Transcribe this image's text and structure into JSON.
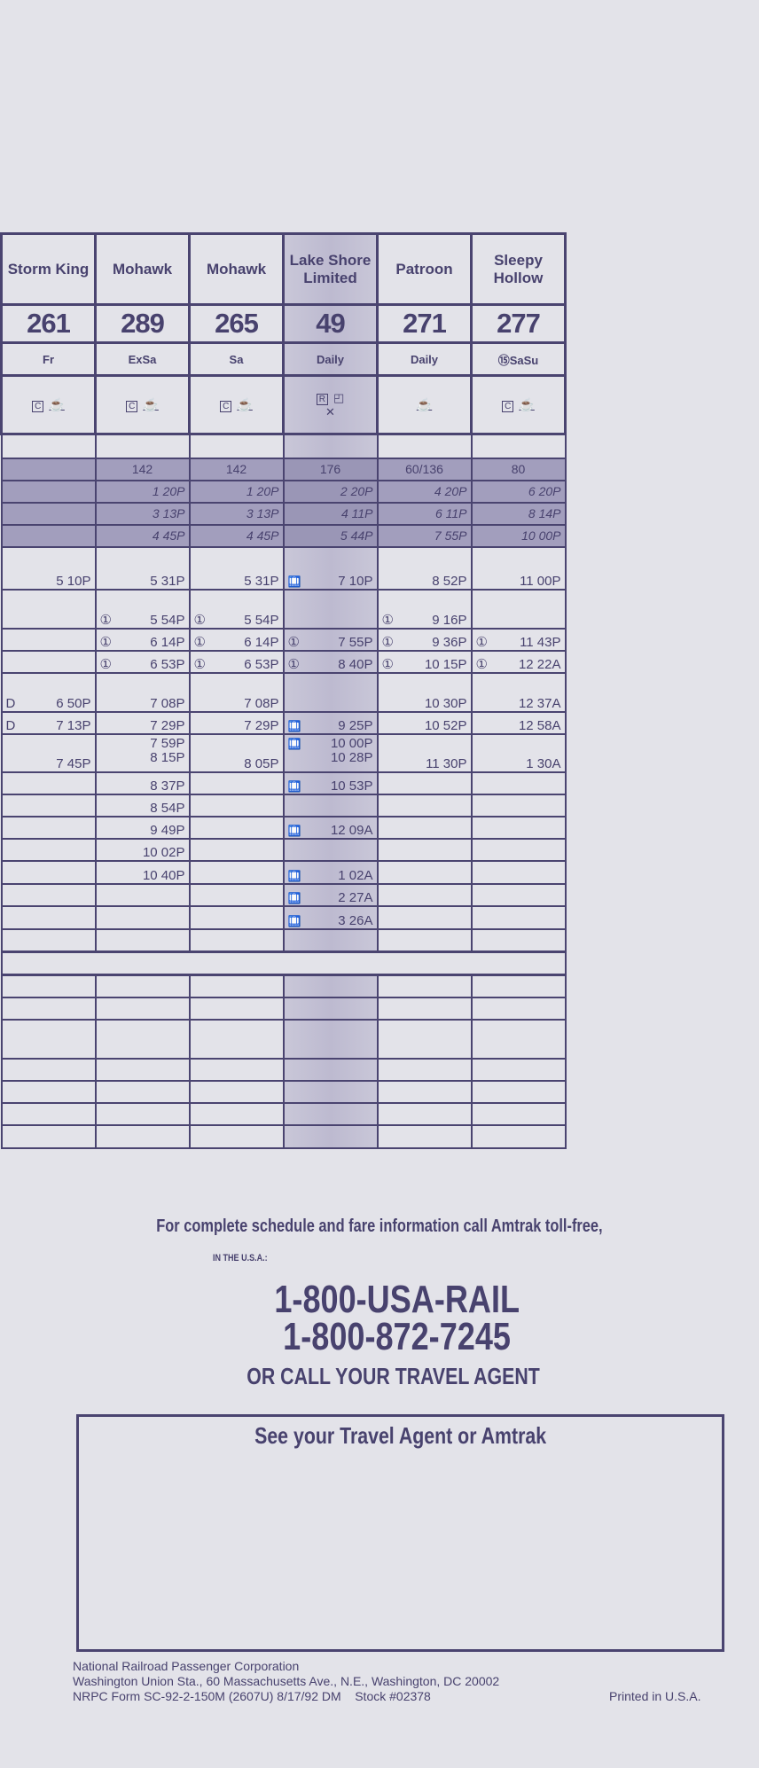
{
  "trains": [
    {
      "name": "Storm King",
      "number": "261",
      "days": "Fr",
      "amenities": [
        "coach-reserved",
        "snack"
      ]
    },
    {
      "name": "Mohawk",
      "number": "289",
      "days": "ExSa",
      "amenities": [
        "coach-reserved",
        "snack"
      ]
    },
    {
      "name": "Mohawk",
      "number": "265",
      "days": "Sa",
      "amenities": [
        "coach-reserved",
        "snack"
      ]
    },
    {
      "name": "Lake Shore Limited",
      "number": "49",
      "days": "Daily",
      "amenities": [
        "reserved",
        "sleeper",
        "dining"
      ]
    },
    {
      "name": "Patroon",
      "number": "271",
      "days": "Daily",
      "amenities": [
        "snack"
      ]
    },
    {
      "name": "Sleepy Hollow",
      "number": "277",
      "days": "⑮SaSu",
      "amenities": [
        "coach-reserved",
        "snack"
      ]
    }
  ],
  "amenity_glyphs": {
    "coach-reserved": "C",
    "reserved": "R",
    "snack": "☕",
    "sleeper": "◰",
    "dining": "✕"
  },
  "connecting_rows": [
    [
      "",
      "142",
      "142",
      "176",
      "60/136",
      "80"
    ],
    [
      "",
      "1 20P",
      "1 20P",
      "2 20P",
      "4 20P",
      "6 20P"
    ],
    [
      "",
      "3 13P",
      "3 13P",
      "4 11P",
      "6 11P",
      "8 14P"
    ],
    [
      "",
      "4 45P",
      "4 45P",
      "5 44P",
      "7 55P",
      "10 00P"
    ]
  ],
  "time_rows": [
    [
      {
        "t": "5 10P"
      },
      {
        "t": "5 31P"
      },
      {
        "t": "5 31P"
      },
      {
        "t": "7 10P",
        "bag": true
      },
      {
        "t": "8 52P"
      },
      {
        "t": "11 00P"
      }
    ],
    [
      {
        "t": ""
      },
      {
        "t": "5 54P",
        "m": "①"
      },
      {
        "t": "5 54P",
        "m": "①"
      },
      {
        "t": ""
      },
      {
        "t": "9 16P",
        "m": "①"
      },
      {
        "t": ""
      }
    ],
    [
      {
        "t": ""
      },
      {
        "t": "6 14P",
        "m": "①"
      },
      {
        "t": "6 14P",
        "m": "①"
      },
      {
        "t": "7 55P",
        "m": "①"
      },
      {
        "t": "9 36P",
        "m": "①"
      },
      {
        "t": "11 43P",
        "m": "①"
      }
    ],
    [
      {
        "t": ""
      },
      {
        "t": "6 53P",
        "m": "①"
      },
      {
        "t": "6 53P",
        "m": "①"
      },
      {
        "t": "8 40P",
        "m": "①"
      },
      {
        "t": "10 15P",
        "m": "①"
      },
      {
        "t": "12 22A",
        "m": "①"
      }
    ],
    [
      {
        "t": "6 50P",
        "m": "D"
      },
      {
        "t": "7 08P"
      },
      {
        "t": "7 08P"
      },
      {
        "t": ""
      },
      {
        "t": "10 30P"
      },
      {
        "t": "12 37A"
      }
    ],
    [
      {
        "t": "7 13P",
        "m": "D"
      },
      {
        "t": "7 29P"
      },
      {
        "t": "7 29P"
      },
      {
        "t": "9 25P",
        "bag": true
      },
      {
        "t": "10 52P"
      },
      {
        "t": "12 58A"
      }
    ],
    [
      {
        "t": "7 45P"
      },
      {
        "t": "7 59P",
        "t2": "8 15P"
      },
      {
        "t": "8 05P"
      },
      {
        "t": "10 00P",
        "t2": "10 28P",
        "bag": true
      },
      {
        "t": "11 30P"
      },
      {
        "t": "1 30A"
      }
    ],
    [
      {
        "t": ""
      },
      {
        "t": "8 37P"
      },
      {
        "t": ""
      },
      {
        "t": "10 53P",
        "bag": true
      },
      {
        "t": ""
      },
      {
        "t": ""
      }
    ],
    [
      {
        "t": ""
      },
      {
        "t": "8 54P"
      },
      {
        "t": ""
      },
      {
        "t": ""
      },
      {
        "t": ""
      },
      {
        "t": ""
      }
    ],
    [
      {
        "t": ""
      },
      {
        "t": "9 49P"
      },
      {
        "t": ""
      },
      {
        "t": "12 09A",
        "bag": true
      },
      {
        "t": ""
      },
      {
        "t": ""
      }
    ],
    [
      {
        "t": ""
      },
      {
        "t": "10 02P"
      },
      {
        "t": ""
      },
      {
        "t": ""
      },
      {
        "t": ""
      },
      {
        "t": ""
      }
    ],
    [
      {
        "t": ""
      },
      {
        "t": "10 40P"
      },
      {
        "t": ""
      },
      {
        "t": "1 02A",
        "bag": true
      },
      {
        "t": ""
      },
      {
        "t": ""
      }
    ],
    [
      {
        "t": ""
      },
      {
        "t": ""
      },
      {
        "t": ""
      },
      {
        "t": "2 27A",
        "bag": true
      },
      {
        "t": ""
      },
      {
        "t": ""
      }
    ],
    [
      {
        "t": ""
      },
      {
        "t": ""
      },
      {
        "t": ""
      },
      {
        "t": "3 26A",
        "bag": true
      },
      {
        "t": ""
      },
      {
        "t": ""
      }
    ],
    [
      {
        "t": ""
      },
      {
        "t": ""
      },
      {
        "t": ""
      },
      {
        "t": ""
      },
      {
        "t": ""
      },
      {
        "t": ""
      }
    ]
  ],
  "contact": {
    "intro": "For complete schedule and fare information call Amtrak toll-free,",
    "region": "IN THE U.S.A.:",
    "phone_word": "1-800-USA-RAIL",
    "phone_number": "1-800-872-7245",
    "agent": "OR CALL YOUR TRAVEL AGENT",
    "box_title": "See your Travel Agent or Amtrak"
  },
  "footer": {
    "org": "National Railroad Passenger Corporation",
    "address": "Washington Union Sta., 60 Massachusetts Ave., N.E., Washington, DC 20002",
    "form": "NRPC Form SC-92-2-150M (2607U) 8/17/92 DM    Stock #02378",
    "printed": "Printed in U.S.A."
  },
  "colors": {
    "ink": "#48426e",
    "paper": "#e3e3e9",
    "shade": "#a29ebd",
    "highlight_column": "#c9c7d8"
  }
}
